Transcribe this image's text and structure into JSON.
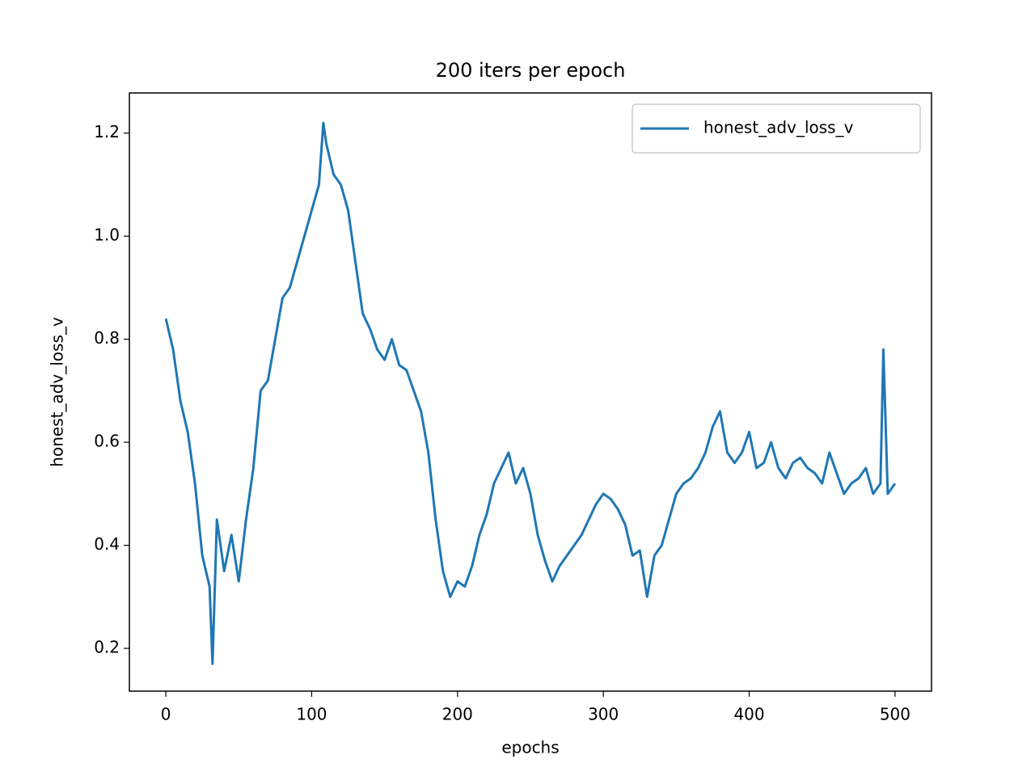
{
  "chart_data": {
    "type": "line",
    "title": "200 iters per epoch",
    "xlabel": "epochs",
    "ylabel": "honest_adv_loss_v",
    "x": [
      0,
      5,
      10,
      15,
      20,
      25,
      30,
      32,
      35,
      40,
      45,
      50,
      55,
      60,
      65,
      70,
      75,
      80,
      85,
      90,
      95,
      100,
      105,
      108,
      110,
      115,
      120,
      125,
      130,
      135,
      140,
      145,
      150,
      155,
      160,
      165,
      170,
      175,
      180,
      185,
      190,
      195,
      200,
      205,
      210,
      215,
      220,
      225,
      230,
      235,
      240,
      245,
      250,
      255,
      260,
      265,
      270,
      275,
      280,
      285,
      290,
      295,
      300,
      305,
      310,
      315,
      320,
      325,
      330,
      335,
      340,
      345,
      350,
      355,
      360,
      365,
      370,
      375,
      380,
      385,
      390,
      395,
      400,
      405,
      410,
      415,
      420,
      425,
      430,
      435,
      440,
      445,
      450,
      455,
      460,
      465,
      470,
      475,
      480,
      485,
      490,
      492,
      495,
      500
    ],
    "series": [
      {
        "name": "honest_adv_loss_v",
        "color": "#1f77b4",
        "values": [
          0.84,
          0.78,
          0.68,
          0.62,
          0.52,
          0.38,
          0.32,
          0.17,
          0.45,
          0.35,
          0.42,
          0.33,
          0.45,
          0.55,
          0.7,
          0.72,
          0.8,
          0.88,
          0.9,
          0.95,
          1.0,
          1.05,
          1.1,
          1.22,
          1.18,
          1.12,
          1.1,
          1.05,
          0.95,
          0.85,
          0.82,
          0.78,
          0.76,
          0.8,
          0.75,
          0.74,
          0.7,
          0.66,
          0.58,
          0.45,
          0.35,
          0.3,
          0.33,
          0.32,
          0.36,
          0.42,
          0.46,
          0.52,
          0.55,
          0.58,
          0.52,
          0.55,
          0.5,
          0.42,
          0.37,
          0.33,
          0.36,
          0.38,
          0.4,
          0.42,
          0.45,
          0.48,
          0.5,
          0.49,
          0.47,
          0.44,
          0.38,
          0.39,
          0.3,
          0.38,
          0.4,
          0.45,
          0.5,
          0.52,
          0.53,
          0.55,
          0.58,
          0.63,
          0.66,
          0.58,
          0.56,
          0.58,
          0.62,
          0.55,
          0.56,
          0.6,
          0.55,
          0.53,
          0.56,
          0.57,
          0.55,
          0.54,
          0.52,
          0.58,
          0.54,
          0.5,
          0.52,
          0.53,
          0.55,
          0.5,
          0.52,
          0.78,
          0.5,
          0.52
        ]
      }
    ],
    "xlim": [
      -25,
      525
    ],
    "xticks": [
      0,
      100,
      200,
      300,
      400,
      500
    ],
    "ylim": [
      0.117,
      1.278
    ],
    "yticks": [
      0.2,
      0.4,
      0.6,
      0.8,
      {
        "value": 1,
        "label": "1.0"
      },
      1.2
    ],
    "legend": "upper right",
    "grid": false
  }
}
